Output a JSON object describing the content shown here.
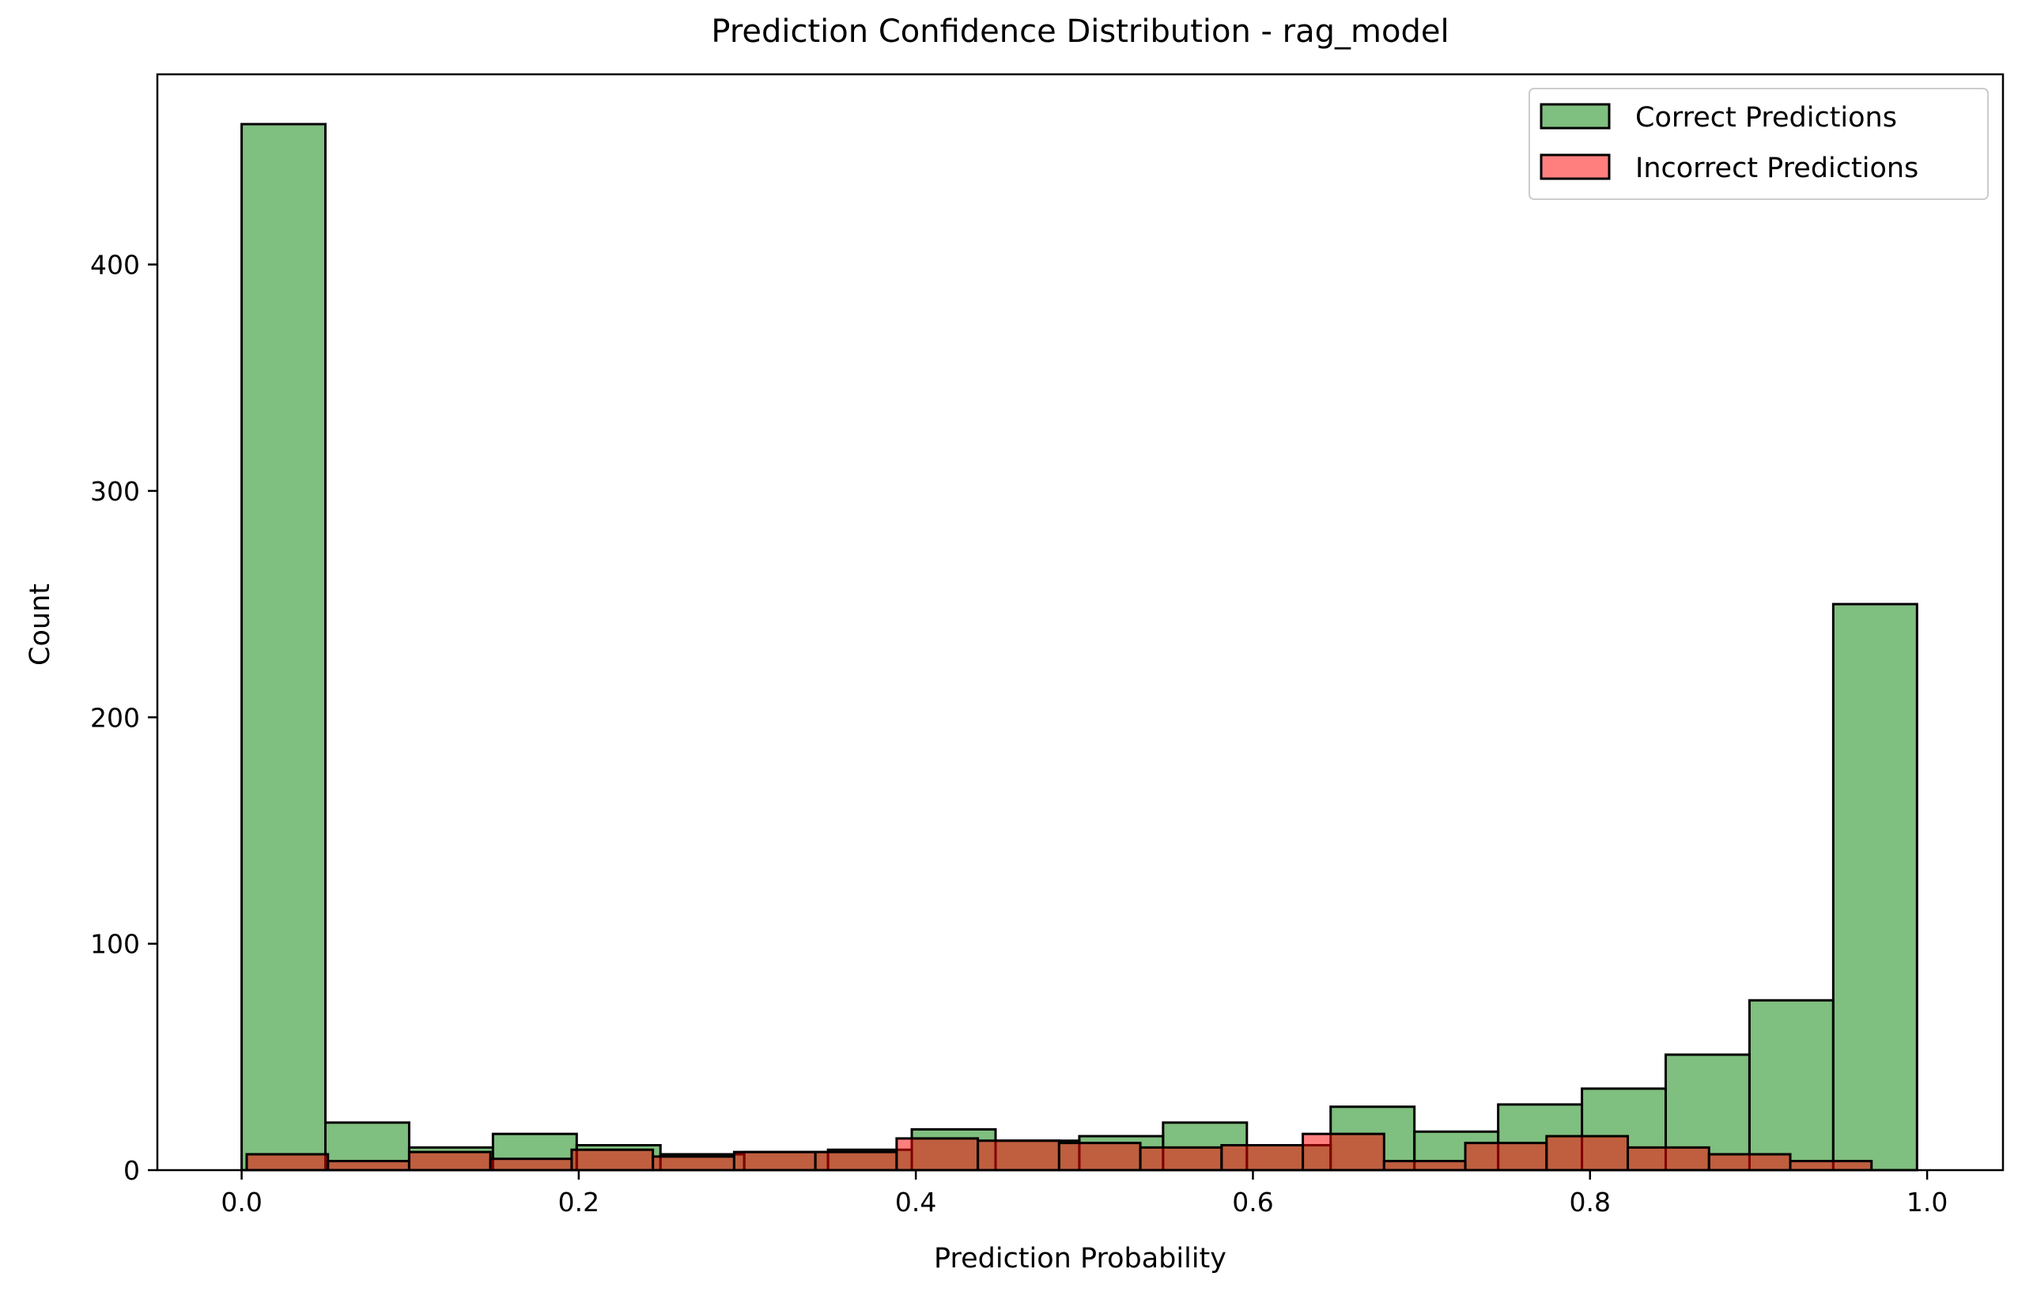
{
  "chart_data": {
    "type": "histogram",
    "title": "Prediction Confidence Distribution - rag_model",
    "xlabel": "Prediction Probability",
    "ylabel": "Count",
    "xlim": [
      -0.05,
      1.045
    ],
    "ylim": [
      0,
      484
    ],
    "x_ticks": [
      0.0,
      0.2,
      0.4,
      0.6,
      0.8,
      1.0
    ],
    "x_tick_labels": [
      "0.0",
      "0.2",
      "0.4",
      "0.6",
      "0.8",
      "1.0"
    ],
    "y_ticks": [
      0,
      100,
      200,
      300,
      400
    ],
    "y_tick_labels": [
      "0",
      "100",
      "200",
      "300",
      "400"
    ],
    "grid": false,
    "legend_position": "upper right",
    "series": [
      {
        "name": "Correct Predictions",
        "color": "#008000",
        "opacity": 0.5,
        "bin_start": 0.0,
        "bin_width": 0.0497,
        "counts": [
          462,
          21,
          10,
          16,
          11,
          7,
          8,
          9,
          18,
          13,
          15,
          21,
          11,
          28,
          17,
          29,
          36,
          51,
          75,
          250
        ]
      },
      {
        "name": "Incorrect Predictions",
        "color": "#ff0000",
        "opacity": 0.5,
        "bin_start": 0.003,
        "bin_width": 0.0482,
        "counts": [
          7,
          4,
          8,
          5,
          9,
          6,
          8,
          8,
          14,
          13,
          12,
          10,
          11,
          16,
          4,
          12,
          15,
          10,
          7,
          4
        ]
      }
    ]
  }
}
